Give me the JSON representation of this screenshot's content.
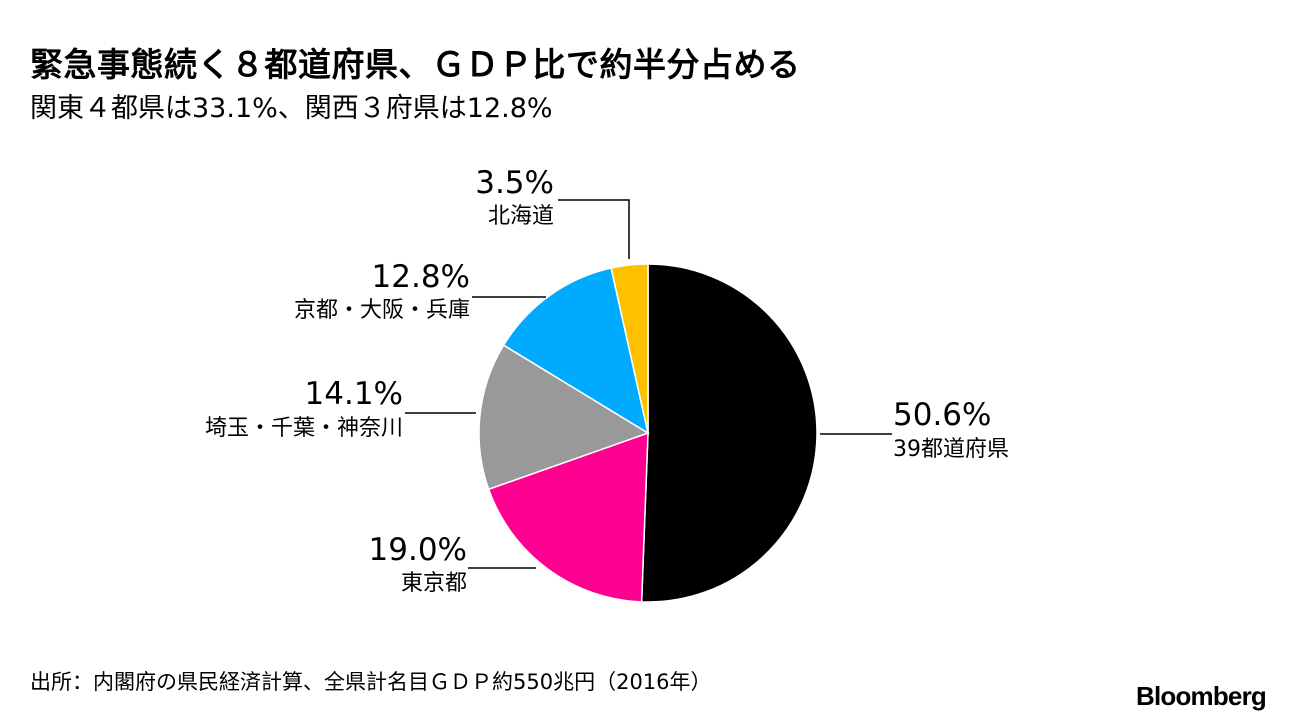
{
  "header": {
    "title": "緊急事態続く８都道府県、ＧＤＰ比で約半分占める",
    "subtitle": "関東４都県は33.1%、関西３府県は12.8%"
  },
  "chart_data": {
    "type": "pie",
    "title": "緊急事態続く８都道府県、ＧＤＰ比で約半分占める",
    "subtitle": "関東４都県は33.1%、関西３府県は12.8%",
    "slices": [
      {
        "label": "39都道府県",
        "value": 50.6,
        "value_label": "50.6%",
        "color": "#000000"
      },
      {
        "label": "東京都",
        "value": 19.0,
        "value_label": "19.0%",
        "color": "#ff0090"
      },
      {
        "label": "埼玉・千葉・神奈川",
        "value": 14.1,
        "value_label": "14.1%",
        "color": "#999999"
      },
      {
        "label": "京都・大阪・兵庫",
        "value": 12.8,
        "value_label": "12.8%",
        "color": "#00aaff"
      },
      {
        "label": "北海道",
        "value": 3.5,
        "value_label": "3.5%",
        "color": "#ffc000"
      }
    ]
  },
  "footer": {
    "source": "出所：内閣府の県民経済計算、全県計名目ＧＤＰ約550兆円（2016年）",
    "logo": "Bloomberg"
  }
}
